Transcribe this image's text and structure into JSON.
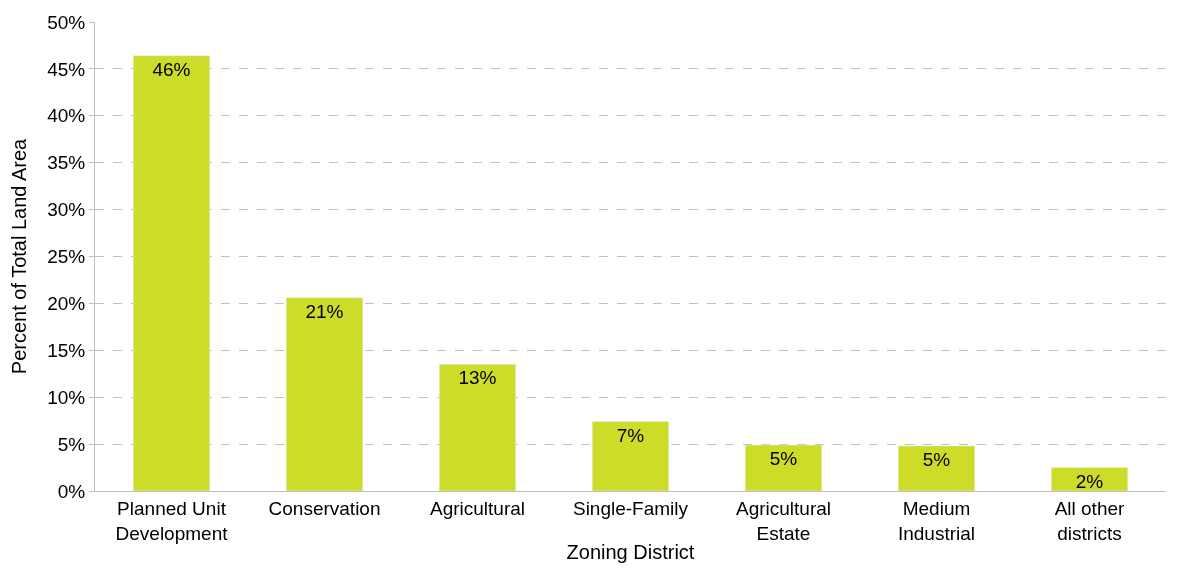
{
  "chart_data": {
    "type": "bar",
    "xlabel": "Zoning District",
    "ylabel": "Percent of Total Land Area",
    "categories": [
      "Planned Unit Development",
      "Conservation",
      "Agricultural",
      "Single-Family",
      "Agricultural Estate",
      "Medium Industrial",
      "All other districts"
    ],
    "values": [
      46.4,
      20.6,
      13.5,
      7.4,
      4.9,
      4.8,
      2.5
    ],
    "value_labels": [
      "46%",
      "21%",
      "13%",
      "7%",
      "5%",
      "5%",
      "2%"
    ],
    "color": "#cddc29",
    "ylim": [
      0,
      50
    ],
    "yticks": [
      {
        "value": 0,
        "label": "0%"
      },
      {
        "value": 5,
        "label": "5%"
      },
      {
        "value": 10,
        "label": "10%"
      },
      {
        "value": 15,
        "label": "15%"
      },
      {
        "value": 20,
        "label": "20%"
      },
      {
        "value": 25,
        "label": "25%"
      },
      {
        "value": 30,
        "label": "30%"
      },
      {
        "value": 35,
        "label": "35%"
      },
      {
        "value": 40,
        "label": "40%"
      },
      {
        "value": 45,
        "label": "45%"
      },
      {
        "value": 50,
        "label": "50%"
      }
    ],
    "grid": "y"
  }
}
